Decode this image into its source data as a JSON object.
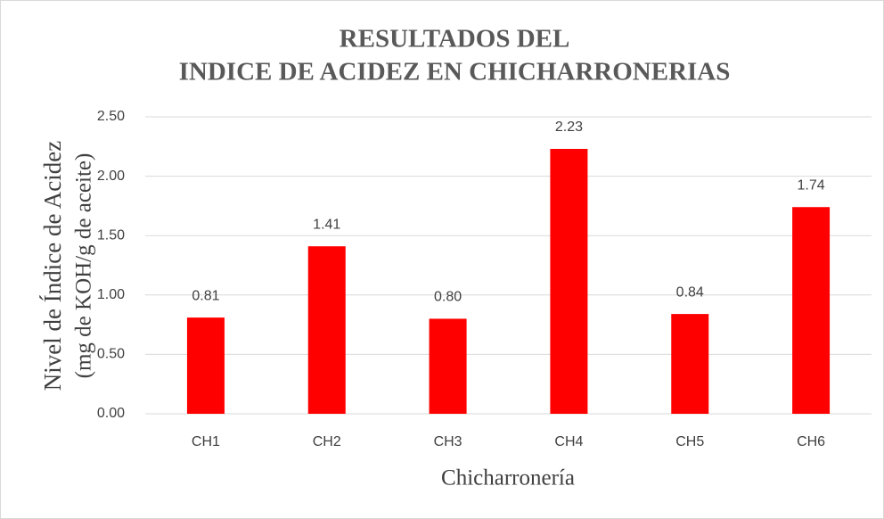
{
  "chart_data": {
    "type": "bar",
    "title": [
      "RESULTADOS DEL",
      "INDICE DE ACIDEZ EN CHICHARRONERIAS"
    ],
    "y_label": [
      "Nivel de Índice de Acidez",
      "(mg de KOH/g de aceite)"
    ],
    "x_label": "Chicharronería",
    "categories": [
      "CH1",
      "CH2",
      "CH3",
      "CH4",
      "CH5",
      "CH6"
    ],
    "values": [
      0.81,
      1.41,
      0.8,
      2.23,
      0.84,
      1.74
    ],
    "value_labels": [
      "0.81",
      "1.41",
      "0.80",
      "2.23",
      "0.84",
      "1.74"
    ],
    "color": "#ff0000",
    "ylim": [
      0,
      2.5
    ],
    "yticks": [
      {
        "value": 0,
        "label": "0.00"
      },
      {
        "value": 0.5,
        "label": "0.50"
      },
      {
        "value": 1,
        "label": "1.00"
      },
      {
        "value": 1.5,
        "label": "1.50"
      },
      {
        "value": 2,
        "label": "2.00"
      },
      {
        "value": 2.5,
        "label": "2.50"
      }
    ],
    "grid": true
  }
}
